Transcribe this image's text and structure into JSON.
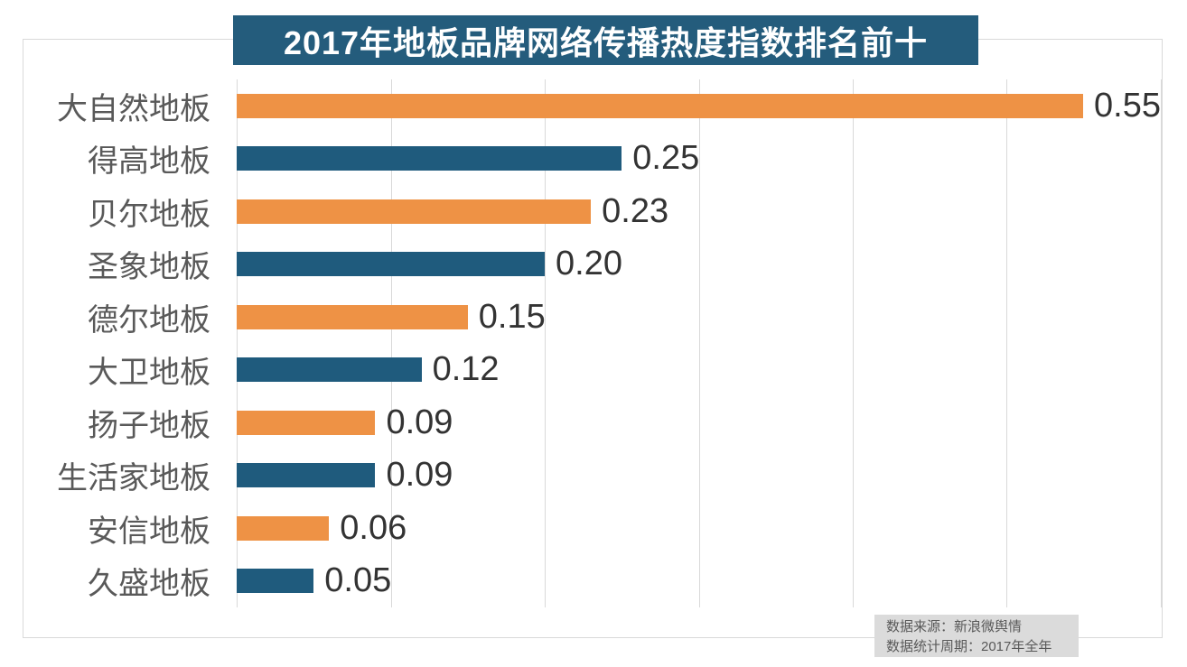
{
  "chart_data": {
    "type": "bar",
    "orientation": "horizontal",
    "title": "2017年地板品牌网络传播热度指数排名前十",
    "categories": [
      "大自然地板",
      "得高地板",
      "贝尔地板",
      "圣象地板",
      "德尔地板",
      "大卫地板",
      "扬子地板",
      "生活家地板",
      "安信地板",
      "久盛地板"
    ],
    "values": [
      0.55,
      0.25,
      0.23,
      0.2,
      0.15,
      0.12,
      0.09,
      0.09,
      0.06,
      0.05
    ],
    "value_labels": [
      "0.55",
      "0.25",
      "0.23",
      "0.20",
      "0.15",
      "0.12",
      "0.09",
      "0.09",
      "0.06",
      "0.05"
    ],
    "xlabel": "",
    "ylabel": "",
    "xlim": [
      0,
      0.6
    ],
    "gridline_ticks": [
      0,
      0.1,
      0.2,
      0.3,
      0.4,
      0.5,
      0.6
    ],
    "grid": "vertical-lines-only",
    "legend": "none",
    "palette": [
      "#ee9245",
      "#1f5b7d"
    ],
    "colors": {
      "title_bg": "#245c7c",
      "title_text": "#ffffff",
      "bar_orange": "#ee9245",
      "bar_teal": "#1f5b7d",
      "gridline": "#d9d9d9",
      "category_text": "#595959",
      "value_text": "#333333",
      "source_bg": "#dbdbdb",
      "source_text": "#595959"
    }
  },
  "footer": {
    "source_line1": "数据来源：新浪微舆情",
    "source_line2": "数据统计周期：2017年全年"
  }
}
